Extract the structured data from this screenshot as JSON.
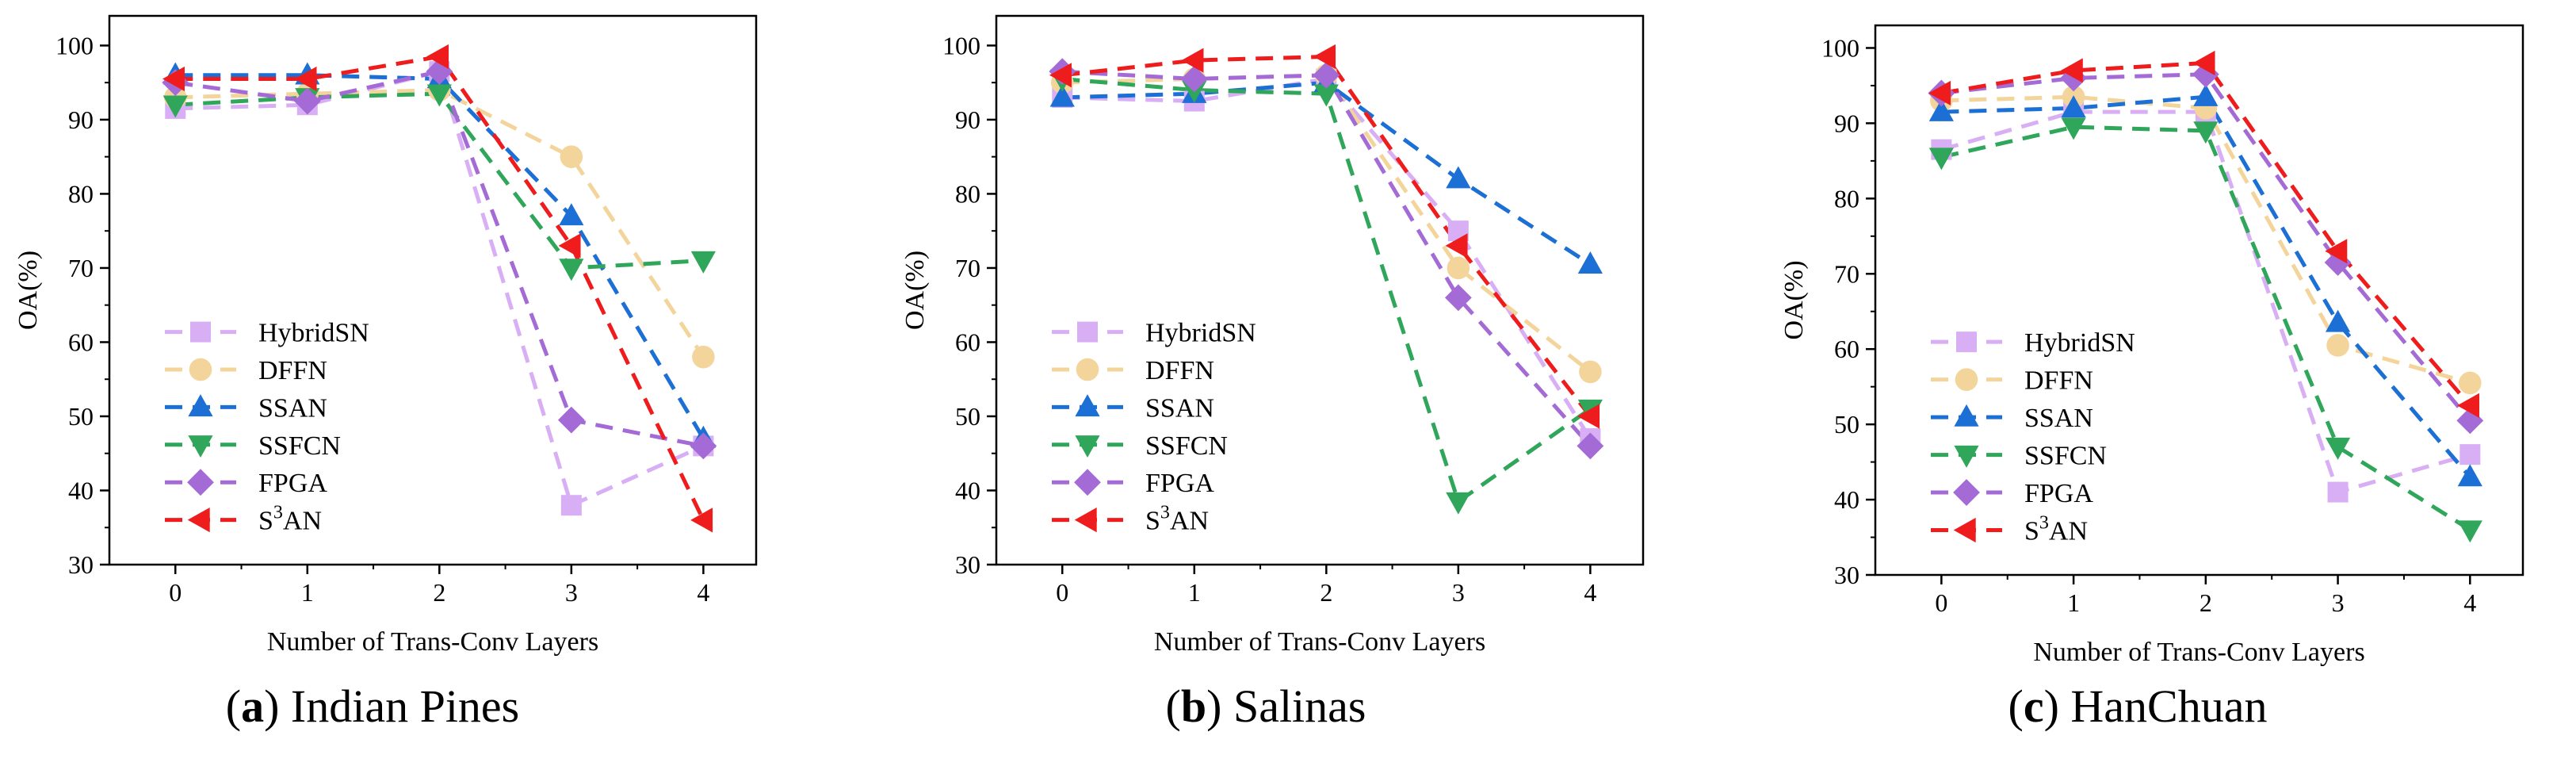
{
  "chart_data": [
    {
      "type": "line",
      "caption": {
        "open": "(",
        "letter": "a",
        "close": ")",
        "text": " Indian Pines"
      },
      "xlabel": "Number of Trans-Conv Layers",
      "ylabel": "OA(%)",
      "x": [
        0,
        1,
        2,
        3,
        4
      ],
      "xlim": [
        -0.5,
        4.4
      ],
      "ylim": [
        30,
        104
      ],
      "yticks": [
        30,
        40,
        50,
        60,
        70,
        80,
        90,
        100
      ],
      "legend_position": "lower-left",
      "series": [
        {
          "name": "HybridSN",
          "values": [
            91.5,
            92.0,
            96.5,
            38.0,
            46.0
          ]
        },
        {
          "name": "DFFN",
          "values": [
            93.0,
            93.5,
            94.0,
            85.0,
            58.0
          ]
        },
        {
          "name": "SSAN",
          "values": [
            96.0,
            96.0,
            95.5,
            77.0,
            47.0
          ]
        },
        {
          "name": "SSFCN",
          "values": [
            92.0,
            93.0,
            93.5,
            70.0,
            71.0
          ]
        },
        {
          "name": "FPGA",
          "values": [
            95.0,
            92.5,
            96.5,
            49.5,
            46.0
          ]
        },
        {
          "name": "S3AN",
          "values": [
            95.5,
            95.5,
            98.5,
            73.0,
            36.0
          ]
        }
      ]
    },
    {
      "type": "line",
      "caption": {
        "open": "(",
        "letter": "b",
        "close": ")",
        "text": " Salinas"
      },
      "xlabel": "Number of Trans-Conv Layers",
      "ylabel": "OA(%)",
      "x": [
        0,
        1,
        2,
        3,
        4
      ],
      "xlim": [
        -0.5,
        4.4
      ],
      "ylim": [
        30,
        104
      ],
      "yticks": [
        30,
        40,
        50,
        60,
        70,
        80,
        90,
        100
      ],
      "legend_position": "lower-left",
      "series": [
        {
          "name": "HybridSN",
          "values": [
            93.0,
            92.5,
            95.5,
            75.0,
            47.0
          ]
        },
        {
          "name": "DFFN",
          "values": [
            95.0,
            95.5,
            96.0,
            70.0,
            56.0
          ]
        },
        {
          "name": "SSAN",
          "values": [
            93.0,
            93.5,
            95.0,
            82.0,
            70.5
          ]
        },
        {
          "name": "SSFCN",
          "values": [
            95.5,
            94.0,
            93.5,
            38.5,
            51.0
          ]
        },
        {
          "name": "FPGA",
          "values": [
            96.5,
            95.5,
            96.0,
            66.0,
            46.0
          ]
        },
        {
          "name": "S3AN",
          "values": [
            96.0,
            98.0,
            98.5,
            73.0,
            50.0
          ]
        }
      ]
    },
    {
      "type": "line",
      "caption": {
        "open": "(",
        "letter": "c",
        "close": ")",
        "text": " HanChuan"
      },
      "xlabel": "Number of Trans-Conv Layers",
      "ylabel": "OA(%)",
      "x": [
        0,
        1,
        2,
        3,
        4
      ],
      "xlim": [
        -0.5,
        4.4
      ],
      "ylim": [
        30,
        103
      ],
      "yticks": [
        30,
        40,
        50,
        60,
        70,
        80,
        90,
        100
      ],
      "legend_position": "lower-left",
      "series": [
        {
          "name": "HybridSN",
          "values": [
            86.5,
            91.5,
            91.5,
            41.0,
            46.0
          ]
        },
        {
          "name": "DFFN",
          "values": [
            93.0,
            93.5,
            92.0,
            60.5,
            55.5
          ]
        },
        {
          "name": "SSAN",
          "values": [
            91.5,
            92.0,
            93.5,
            63.5,
            43.0
          ]
        },
        {
          "name": "SSFCN",
          "values": [
            85.5,
            89.5,
            89.0,
            47.0,
            36.0
          ]
        },
        {
          "name": "FPGA",
          "values": [
            94.0,
            96.0,
            96.5,
            71.5,
            50.5
          ]
        },
        {
          "name": "S3AN",
          "values": [
            94.0,
            97.0,
            98.0,
            73.0,
            52.5
          ]
        }
      ]
    }
  ],
  "series_style": {
    "HybridSN": {
      "color": "#d8aef4",
      "marker": "square",
      "legend_base": "HybridSN",
      "legend_sup": "",
      "legend_tail": ""
    },
    "DFFN": {
      "color": "#f3d59c",
      "marker": "circle",
      "legend_base": "DFFN",
      "legend_sup": "",
      "legend_tail": ""
    },
    "SSAN": {
      "color": "#1c6fd4",
      "marker": "triangle-up",
      "legend_base": "SSAN",
      "legend_sup": "",
      "legend_tail": ""
    },
    "SSFCN": {
      "color": "#2fa65a",
      "marker": "triangle-down",
      "legend_base": "SSFCN",
      "legend_sup": "",
      "legend_tail": ""
    },
    "FPGA": {
      "color": "#a46ad6",
      "marker": "diamond",
      "legend_base": "FPGA",
      "legend_sup": "",
      "legend_tail": ""
    },
    "S3AN": {
      "color": "#ee1c1c",
      "marker": "triangle-left",
      "legend_base": "S",
      "legend_sup": "3",
      "legend_tail": "AN"
    }
  }
}
